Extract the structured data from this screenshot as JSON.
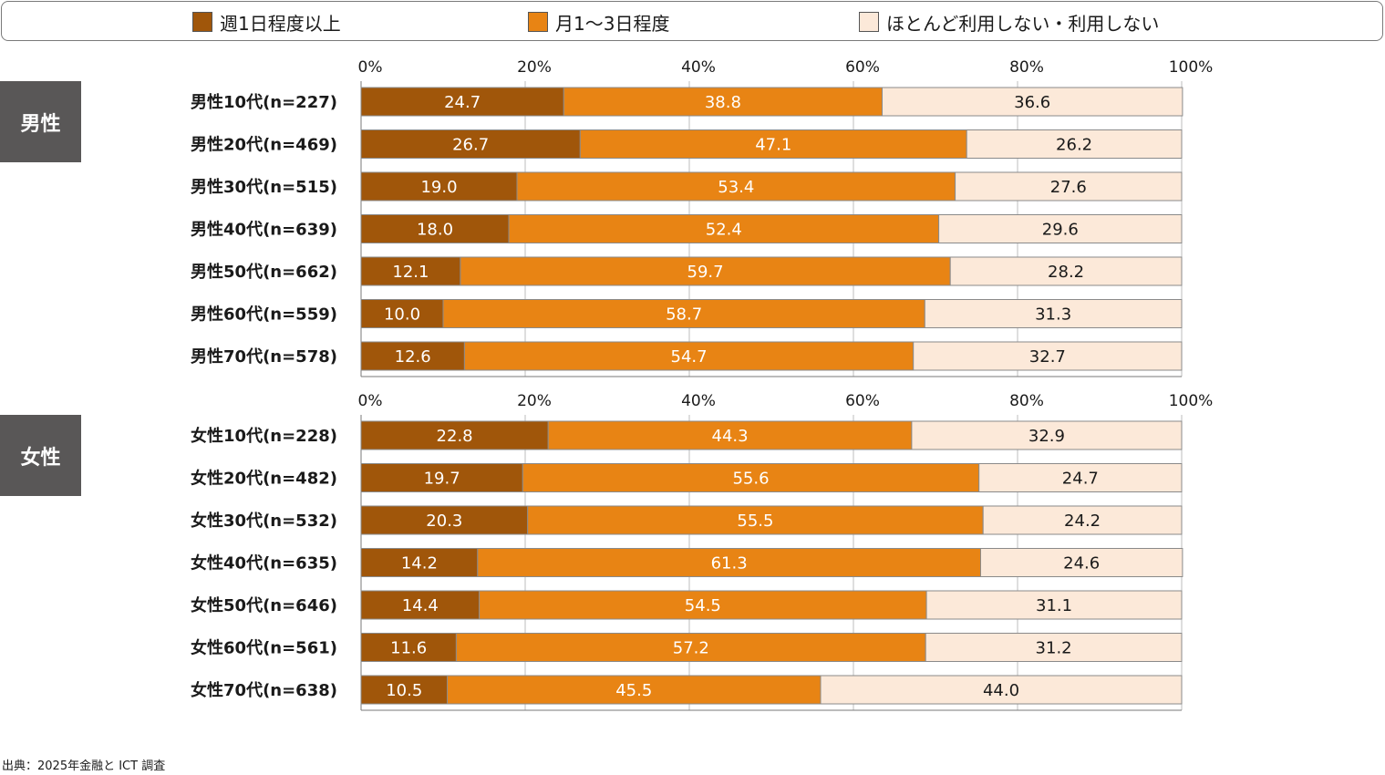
{
  "legend": {
    "items": [
      {
        "label": "週1日程度以上",
        "color": "#a0560a"
      },
      {
        "label": "月1～3日程度",
        "color": "#e88414"
      },
      {
        "label": "ほとんど利用しない・利用しない",
        "color": "#fce9d9"
      }
    ]
  },
  "groups": {
    "male_label": "男性",
    "female_label": "女性"
  },
  "source": "出典：2025年金融と ICT 調査",
  "chart_data": [
    {
      "type": "bar",
      "orientation": "horizontal",
      "stacked": true,
      "group": "男性",
      "xlim": [
        0,
        100
      ],
      "ticks": [
        "0%",
        "20%",
        "40%",
        "60%",
        "80%",
        "100%"
      ],
      "categories": [
        "男性10代(n=227)",
        "男性20代(n=469)",
        "男性30代(n=515)",
        "男性40代(n=639)",
        "男性50代(n=662)",
        "男性60代(n=559)",
        "男性70代(n=578)"
      ],
      "series": [
        {
          "name": "週1日程度以上",
          "values": [
            "24.7",
            "26.7",
            "19.0",
            "18.0",
            "12.1",
            "10.0",
            "12.6"
          ]
        },
        {
          "name": "月1～3日程度",
          "values": [
            "38.8",
            "47.1",
            "53.4",
            "52.4",
            "59.7",
            "58.7",
            "54.7"
          ]
        },
        {
          "name": "ほとんど利用しない・利用しない",
          "values": [
            "36.6",
            "26.2",
            "27.6",
            "29.6",
            "28.2",
            "31.3",
            "32.7"
          ]
        }
      ]
    },
    {
      "type": "bar",
      "orientation": "horizontal",
      "stacked": true,
      "group": "女性",
      "xlim": [
        0,
        100
      ],
      "ticks": [
        "0%",
        "20%",
        "40%",
        "60%",
        "80%",
        "100%"
      ],
      "categories": [
        "女性10代(n=228)",
        "女性20代(n=482)",
        "女性30代(n=532)",
        "女性40代(n=635)",
        "女性50代(n=646)",
        "女性60代(n=561)",
        "女性70代(n=638)"
      ],
      "series": [
        {
          "name": "週1日程度以上",
          "values": [
            "22.8",
            "19.7",
            "20.3",
            "14.2",
            "14.4",
            "11.6",
            "10.5"
          ]
        },
        {
          "name": "月1～3日程度",
          "values": [
            "44.3",
            "55.6",
            "55.5",
            "61.3",
            "54.5",
            "57.2",
            "45.5"
          ]
        },
        {
          "name": "ほとんど利用しない・利用しない",
          "values": [
            "32.9",
            "24.7",
            "24.2",
            "24.6",
            "31.1",
            "31.2",
            "44.0"
          ]
        }
      ]
    }
  ]
}
